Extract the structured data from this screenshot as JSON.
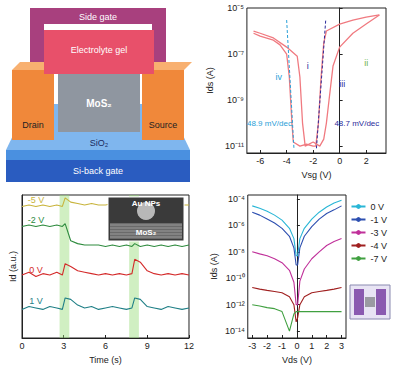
{
  "schematic": {
    "side_gate": "Side gate",
    "gel": "Electrolyte gel",
    "channel": "MoS₂",
    "drain": "Drain",
    "source": "Source",
    "oxide": "SiO₂",
    "substrate": "Si-back gate"
  },
  "chart_data": [
    {
      "type": "line",
      "x_label": "Vsg (V)",
      "y_label": "Ids (A)",
      "log": "y",
      "grid": false,
      "xlim": [
        -7,
        3.5
      ],
      "xticks": [
        -6,
        -4,
        -2,
        0,
        2
      ],
      "ylim": [
        5e-12,
        1e-05
      ],
      "yticks": [
        {
          "value": 1e-11,
          "label": "10⁻¹¹"
        },
        {
          "value": 1e-09,
          "label": "10⁻⁹"
        },
        {
          "value": 1e-07,
          "label": "10⁻⁷"
        },
        {
          "value": 1e-05,
          "label": "10⁻⁵"
        }
      ],
      "series": [
        {
          "color": "#f07a80",
          "x": [
            -6.5,
            -6,
            -5,
            -4.5,
            -4,
            -3.8,
            -3.6,
            -3.5,
            -3,
            -2.5,
            -2,
            -1.8,
            -1.6,
            -1.4,
            -1.2,
            -1,
            0,
            1,
            2,
            3
          ],
          "values": [
            8e-07,
            6e-07,
            4e-07,
            2.5e-07,
            1e-07,
            1e-08,
            1e-10,
            1.5e-11,
            1e-11,
            1.2e-11,
            1e-11,
            1e-11,
            1e-10,
            1e-08,
            3e-07,
            1e-06,
            2e-06,
            3e-06,
            4e-06,
            5e-06
          ]
        },
        {
          "color": "#f07a80",
          "x": [
            -6.5,
            -6,
            -5,
            -4,
            -3.2,
            -3,
            -2.8,
            -2.6,
            -2,
            -1.5,
            -1.2,
            -1,
            -0.8,
            -0.5,
            0,
            1,
            2,
            3
          ],
          "values": [
            1e-06,
            8e-07,
            5e-07,
            2e-07,
            8e-08,
            1e-08,
            1e-10,
            1e-11,
            1.5e-11,
            1e-11,
            2e-11,
            1e-10,
            1e-09,
            3e-08,
            2e-07,
            8e-07,
            2e-06,
            5e-06
          ]
        }
      ],
      "annotations": [
        {
          "text": "48.9 mV/dec",
          "color": "#2aa0d8"
        },
        {
          "text": "48.7 mV/dec",
          "color": "#2a2a9a"
        },
        {
          "text": "i",
          "color": "#2a2a9a"
        },
        {
          "text": "ii",
          "color": "#6ab04a"
        },
        {
          "text": "iii",
          "color": "#2a2a9a"
        },
        {
          "text": "iv",
          "color": "#2aa0d8"
        }
      ]
    },
    {
      "type": "line",
      "x_label": "Time (s)",
      "y_label": "Id (a.u.)",
      "tick_labels": "x",
      "grid": false,
      "xlim": [
        0,
        12
      ],
      "xticks": [
        0,
        3,
        6,
        9,
        12
      ],
      "ylim": [
        0,
        1
      ],
      "x": [
        0,
        0.5,
        1,
        1.5,
        2,
        2.5,
        2.9,
        3.1,
        3.5,
        4,
        4.5,
        5,
        5.5,
        6,
        6.5,
        7,
        7.5,
        7.9,
        8.1,
        8.5,
        9,
        9.5,
        10,
        10.5,
        11,
        11.5,
        12
      ],
      "series": [
        {
          "name": "-5 V",
          "color": "#c8b43c",
          "values": [
            0.92,
            0.93,
            0.92,
            0.93,
            0.92,
            0.93,
            0.92,
            0.98,
            0.95,
            0.94,
            0.93,
            0.94,
            0.93,
            0.93,
            0.94,
            0.93,
            0.93,
            0.93,
            0.94,
            0.93,
            0.93,
            0.94,
            0.93,
            0.93,
            0.94,
            0.93,
            0.93
          ]
        },
        {
          "name": "-2 V",
          "color": "#2e8b3e",
          "values": [
            0.78,
            0.79,
            0.78,
            0.79,
            0.78,
            0.79,
            0.78,
            0.8,
            0.68,
            0.66,
            0.65,
            0.65,
            0.65,
            0.64,
            0.65,
            0.64,
            0.65,
            0.64,
            0.66,
            0.64,
            0.65,
            0.64,
            0.65,
            0.64,
            0.65,
            0.64,
            0.65
          ]
        },
        {
          "name": "0 V",
          "color": "#d42a2a",
          "values": [
            0.44,
            0.46,
            0.43,
            0.45,
            0.44,
            0.46,
            0.44,
            0.52,
            0.5,
            0.47,
            0.46,
            0.45,
            0.44,
            0.45,
            0.44,
            0.45,
            0.44,
            0.45,
            0.55,
            0.53,
            0.47,
            0.45,
            0.44,
            0.45,
            0.44,
            0.45,
            0.44
          ]
        },
        {
          "name": "1 V",
          "color": "#1f7f86",
          "values": [
            0.2,
            0.22,
            0.21,
            0.2,
            0.22,
            0.21,
            0.2,
            0.28,
            0.27,
            0.23,
            0.21,
            0.22,
            0.2,
            0.21,
            0.22,
            0.21,
            0.2,
            0.21,
            0.28,
            0.27,
            0.22,
            0.21,
            0.2,
            0.22,
            0.21,
            0.2,
            0.21
          ]
        }
      ],
      "highlights": [
        [
          2.7,
          3.4
        ],
        [
          7.7,
          8.4
        ]
      ],
      "inset_labels": [
        "Au NPs",
        "MoS₂"
      ]
    },
    {
      "type": "line",
      "x_label": "Vds (V)",
      "y_label": "Ids (A)",
      "log": "y",
      "grid": false,
      "legend": "right",
      "xlim": [
        -3.3,
        3.3
      ],
      "xticks": [
        -3,
        -2,
        -1,
        0,
        1,
        2,
        3
      ],
      "ylim": [
        3e-15,
        0.0002
      ],
      "yticks": [
        {
          "value": 1e-14,
          "label": "10⁻¹⁴"
        },
        {
          "value": 1e-12,
          "label": "10⁻¹²"
        },
        {
          "value": 1e-10,
          "label": "10⁻¹⁰"
        },
        {
          "value": 1e-08,
          "label": "10⁻⁸"
        },
        {
          "value": 1e-06,
          "label": "10⁻⁶"
        },
        {
          "value": 0.0001,
          "label": "10⁻⁴"
        }
      ],
      "x": [
        -3,
        -2.5,
        -2,
        -1.5,
        -1,
        -0.5,
        -0.2,
        -0.05,
        0.05,
        0.2,
        0.5,
        1,
        1.5,
        2,
        2.5,
        3
      ],
      "series": [
        {
          "name": "0 V",
          "color": "#29b6d6",
          "values": [
            3e-05,
            2e-05,
            1.2e-05,
            6e-06,
            2.5e-06,
            6e-07,
            1e-07,
            5e-09,
            5e-09,
            1e-07,
            6e-07,
            3e-06,
            1e-05,
            2.5e-05,
            5e-05,
            8e-05
          ]
        },
        {
          "name": "-1 V",
          "color": "#2d4fb0",
          "values": [
            1e-05,
            6e-06,
            3e-06,
            1.5e-06,
            6e-07,
            1.5e-07,
            2e-08,
            1e-09,
            1e-09,
            2e-08,
            1.5e-07,
            8e-07,
            3e-06,
            8e-06,
            1.5e-05,
            3e-05
          ]
        },
        {
          "name": "-3 V",
          "color": "#c0309a",
          "values": [
            1e-08,
            7e-09,
            5e-09,
            3e-09,
            1.5e-09,
            4e-10,
            5e-11,
            1e-12,
            1e-12,
            6e-11,
            5e-10,
            3e-09,
            1e-08,
            3e-08,
            6e-08,
            1e-07
          ]
        },
        {
          "name": "-4 V",
          "color": "#a02020",
          "values": [
            2e-11,
            1.5e-11,
            1.2e-11,
            1e-11,
            8e-12,
            4e-12,
            1e-12,
            5e-14,
            1e-13,
            1e-12,
            4e-12,
            8e-12,
            1e-11,
            1.2e-11,
            1.5e-11,
            2e-11
          ]
        },
        {
          "name": "-7 V",
          "color": "#40a040",
          "values": [
            1e-12,
            8e-13,
            6e-13,
            5e-13,
            3e-13,
            1e-14,
            2e-13,
            3e-13,
            3e-13,
            3e-13,
            3e-13,
            3e-13,
            3e-13,
            3e-13,
            3e-13,
            3e-13
          ]
        }
      ]
    }
  ]
}
